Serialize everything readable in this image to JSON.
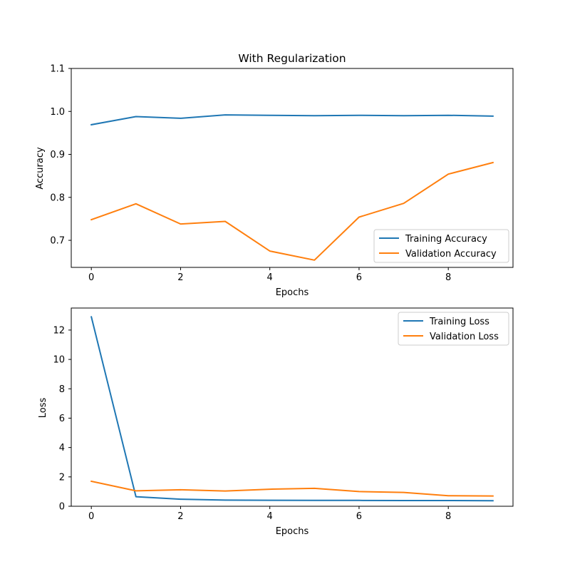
{
  "chart_data": [
    {
      "type": "line",
      "title": "With Regularization",
      "xlabel": "Epochs",
      "ylabel": "Accuracy",
      "xlim": [
        -0.45,
        9.45
      ],
      "ylim": [
        0.637,
        1.1
      ],
      "xticks": [
        0,
        2,
        4,
        6,
        8
      ],
      "yticks": [
        0.7,
        0.8,
        0.9,
        1.0,
        1.1
      ],
      "ytick_labels": [
        "0.7",
        "0.8",
        "0.9",
        "1.0",
        "1.1"
      ],
      "legend_position": "lower-right",
      "x": [
        0,
        1,
        2,
        3,
        4,
        5,
        6,
        7,
        8,
        9
      ],
      "series": [
        {
          "name": "Training Accuracy",
          "color": "#1f77b4",
          "values": [
            0.969,
            0.988,
            0.984,
            0.992,
            0.991,
            0.99,
            0.991,
            0.99,
            0.991,
            0.989
          ]
        },
        {
          "name": "Validation Accuracy",
          "color": "#ff7f0e",
          "values": [
            0.748,
            0.785,
            0.738,
            0.744,
            0.675,
            0.654,
            0.754,
            0.786,
            0.854,
            0.881
          ]
        }
      ]
    },
    {
      "type": "line",
      "title": "",
      "xlabel": "Epochs",
      "ylabel": "Loss",
      "xlim": [
        -0.45,
        9.45
      ],
      "ylim": [
        0,
        13.5
      ],
      "xticks": [
        0,
        2,
        4,
        6,
        8
      ],
      "yticks": [
        0,
        2,
        4,
        6,
        8,
        10,
        12
      ],
      "ytick_labels": [
        "0",
        "2",
        "4",
        "6",
        "8",
        "10",
        "12"
      ],
      "legend_position": "upper-right",
      "x": [
        0,
        1,
        2,
        3,
        4,
        5,
        6,
        7,
        8,
        9
      ],
      "series": [
        {
          "name": "Training Loss",
          "color": "#1f77b4",
          "values": [
            12.9,
            0.65,
            0.48,
            0.42,
            0.41,
            0.4,
            0.4,
            0.39,
            0.39,
            0.38
          ]
        },
        {
          "name": "Validation Loss",
          "color": "#ff7f0e",
          "values": [
            1.7,
            1.05,
            1.12,
            1.04,
            1.16,
            1.22,
            1.0,
            0.94,
            0.72,
            0.7
          ]
        }
      ]
    }
  ]
}
